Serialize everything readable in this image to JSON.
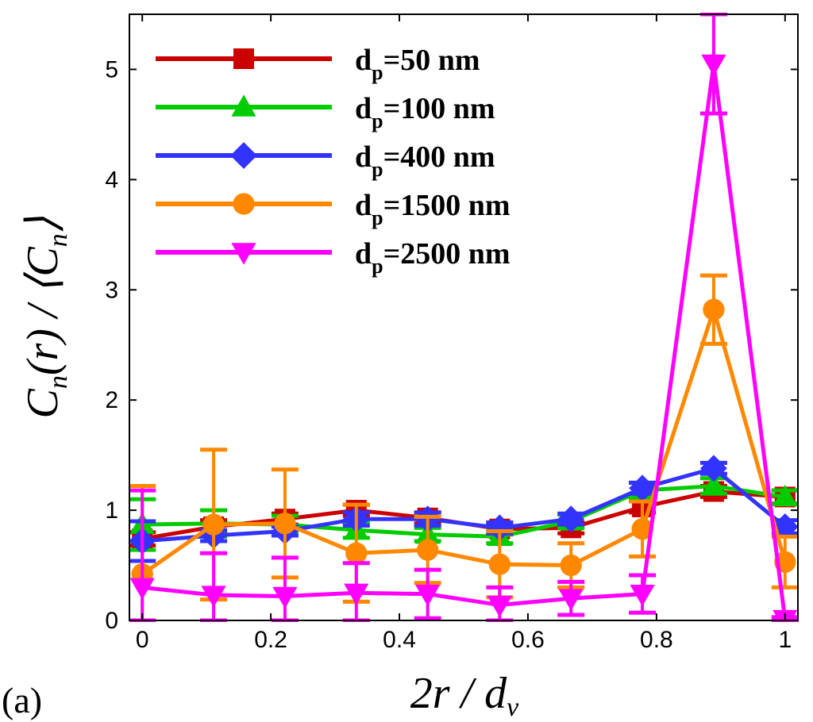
{
  "panel_label": "(a)",
  "chart_data": {
    "type": "line",
    "title": "",
    "xlabel": "2r / d_v",
    "ylabel": "C_n(r) / ⟨C_n⟩",
    "xlim": [
      -0.02,
      1.02
    ],
    "ylim": [
      0,
      5.5
    ],
    "xticks": [
      0,
      0.2,
      0.4,
      0.6,
      0.8,
      1
    ],
    "xtick_labels": [
      "0",
      "0.2",
      "0.4",
      "0.6",
      "0.8",
      "1"
    ],
    "yticks": [
      0,
      1,
      2,
      3,
      4,
      5
    ],
    "ytick_labels": [
      "0",
      "1",
      "2",
      "3",
      "4",
      "5"
    ],
    "legend_position": "top-left",
    "x": [
      0,
      0.111,
      0.222,
      0.333,
      0.444,
      0.556,
      0.667,
      0.778,
      0.889,
      1.0
    ],
    "series": [
      {
        "name": "dp=50 nm",
        "label_main": "d",
        "label_sub": "p",
        "label_rest": "=50 nm",
        "color": "#cc0000",
        "marker": "square",
        "values": [
          0.74,
          0.85,
          0.92,
          1.0,
          0.93,
          0.83,
          0.84,
          1.03,
          1.17,
          1.12
        ],
        "errors": [
          0.06,
          0.06,
          0.05,
          0.05,
          0.05,
          0.05,
          0.05,
          0.05,
          0.05,
          0.06
        ]
      },
      {
        "name": "dp=100 nm",
        "label_main": "d",
        "label_sub": "p",
        "label_rest": "=100 nm",
        "color": "#00cc00",
        "marker": "triangle-up",
        "values": [
          0.87,
          0.88,
          0.87,
          0.82,
          0.78,
          0.76,
          0.9,
          1.18,
          1.22,
          1.12
        ],
        "errors": [
          0.23,
          0.12,
          0.08,
          0.07,
          0.06,
          0.06,
          0.06,
          0.07,
          0.07,
          0.06
        ]
      },
      {
        "name": "dp=400 nm",
        "label_main": "d",
        "label_sub": "p",
        "label_rest": "=400 nm",
        "color": "#3333ff",
        "marker": "diamond",
        "values": [
          0.72,
          0.77,
          0.81,
          0.92,
          0.92,
          0.84,
          0.92,
          1.2,
          1.38,
          0.85
        ],
        "errors": [
          0.18,
          0.05,
          0.04,
          0.06,
          0.06,
          0.05,
          0.05,
          0.05,
          0.05,
          0.06
        ]
      },
      {
        "name": "dp=1500 nm",
        "label_main": "d",
        "label_sub": "p",
        "label_rest": "=1500 nm",
        "color": "#ff8800",
        "marker": "circle",
        "values": [
          0.42,
          0.87,
          0.88,
          0.61,
          0.64,
          0.51,
          0.5,
          0.83,
          2.82,
          0.53
        ],
        "errors": [
          0.8,
          0.68,
          0.49,
          0.44,
          0.3,
          0.3,
          0.2,
          0.25,
          0.31,
          0.23
        ]
      },
      {
        "name": "dp=2500 nm",
        "label_main": "d",
        "label_sub": "p",
        "label_rest": "=2500 nm",
        "color": "#ff00ff",
        "marker": "triangle-down",
        "values": [
          0.3,
          0.23,
          0.22,
          0.25,
          0.24,
          0.14,
          0.2,
          0.24,
          5.05,
          0.01
        ],
        "errors": [
          0.88,
          0.38,
          0.35,
          0.27,
          0.22,
          0.16,
          0.15,
          0.17,
          0.45,
          0.02
        ]
      }
    ]
  }
}
